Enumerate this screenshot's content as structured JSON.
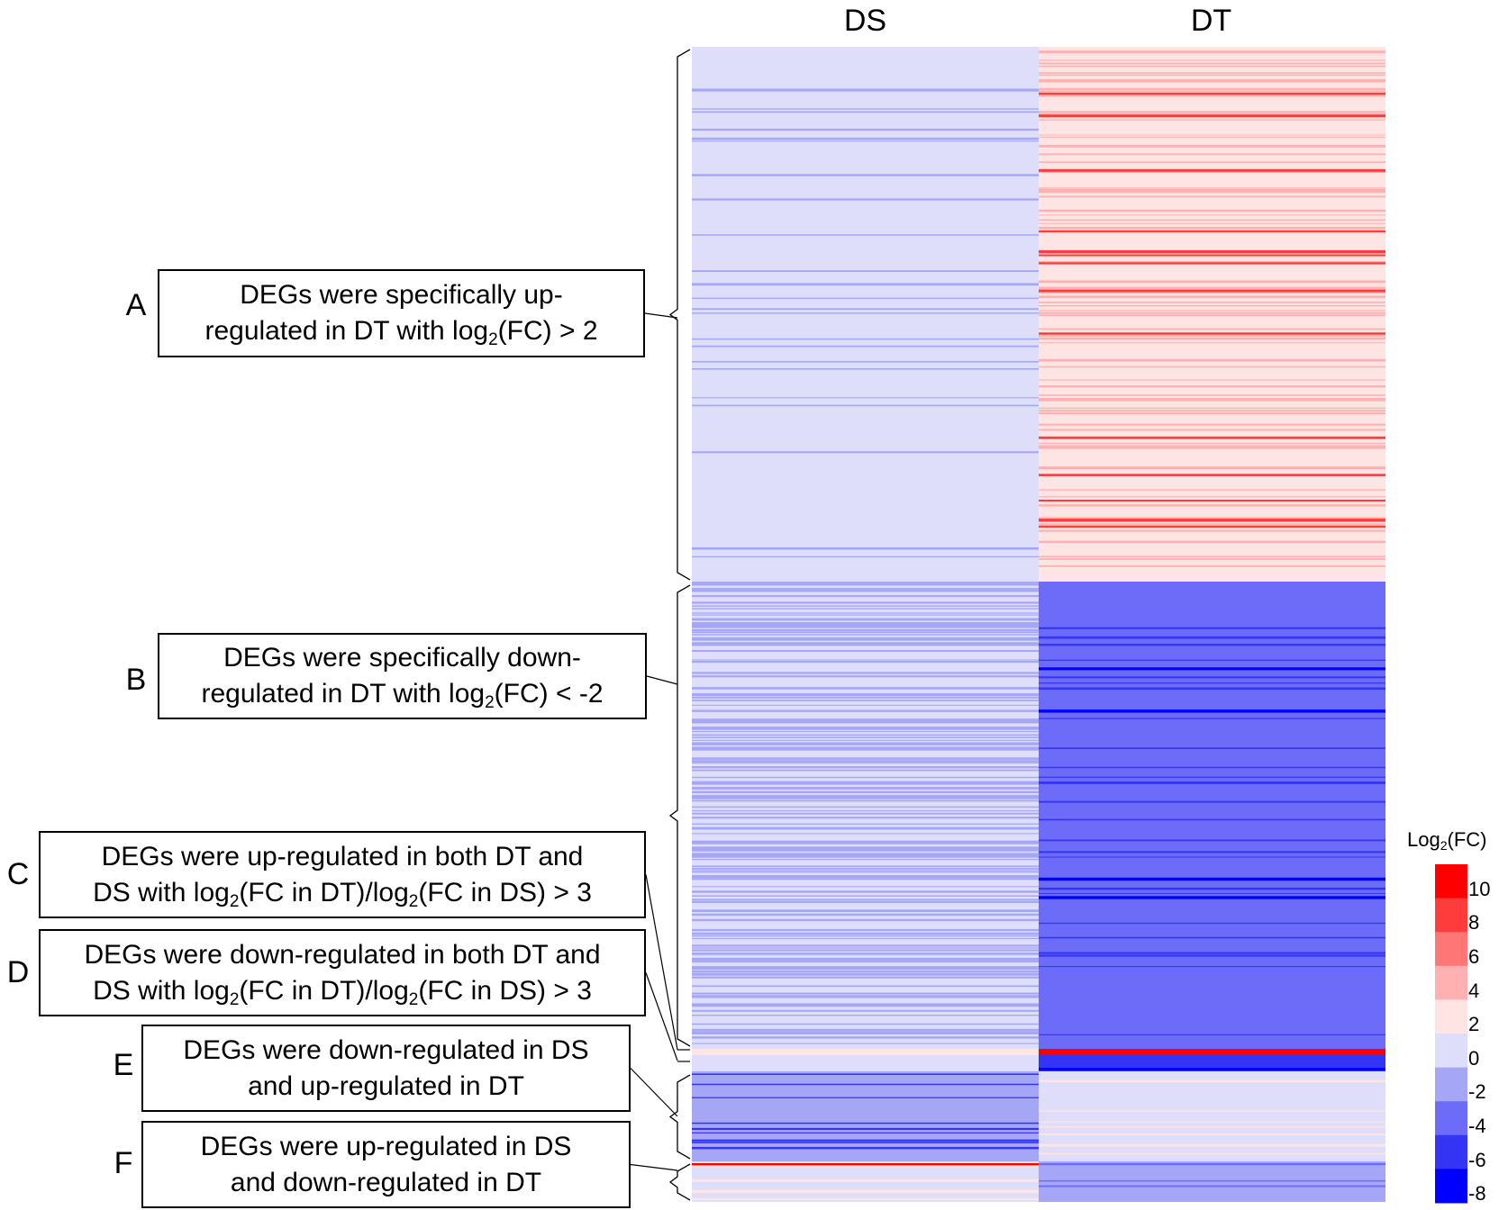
{
  "chart_data": {
    "type": "heatmap",
    "columns": [
      "DS",
      "DT"
    ],
    "colorbar": {
      "title_main": "Log",
      "title_sub": "2",
      "title_tail": "(FC)",
      "range": [
        -9,
        11
      ],
      "ticks": [
        "10",
        "8",
        "6",
        "4",
        "2",
        "0",
        "-2",
        "-4",
        "-6",
        "-8"
      ],
      "bins": [
        {
          "from": 9,
          "to": 11,
          "color": "#ff0000"
        },
        {
          "from": 7,
          "to": 9,
          "color": "#ff3c3c"
        },
        {
          "from": 5,
          "to": 7,
          "color": "#ff7676"
        },
        {
          "from": 3,
          "to": 5,
          "color": "#ffb1b1"
        },
        {
          "from": 1,
          "to": 3,
          "color": "#ffe4e4"
        },
        {
          "from": -1,
          "to": 1,
          "color": "#dedefb"
        },
        {
          "from": -3,
          "to": -1,
          "color": "#a6a6f6"
        },
        {
          "from": -5,
          "to": -3,
          "color": "#6c6cf8"
        },
        {
          "from": -7,
          "to": -5,
          "color": "#3434f5"
        },
        {
          "from": -9,
          "to": -7,
          "color": "#0000ff"
        }
      ]
    },
    "clusters": [
      {
        "id": "A",
        "text_parts": [
          [
            "DEGs were specifically up-"
          ],
          [
            "regulated in DT with log",
            {
              "sub": "2"
            },
            "(FC) > 2"
          ]
        ],
        "ds_base": 0,
        "ds_stripe": -2,
        "ds_stripes": 26,
        "dt_base": 2,
        "dt_stripe": 4,
        "dt_stripes": 90,
        "dt_strong": 8,
        "dt_strong_count": 14
      },
      {
        "id": "B",
        "text_parts": [
          [
            "DEGs were specifically down-"
          ],
          [
            "regulated in DT with log",
            {
              "sub": "2"
            },
            "(FC) < -2"
          ]
        ],
        "ds_base": 0,
        "ds_stripe": -2,
        "ds_stripes": 170,
        "dt_base": -4,
        "dt_stripe": -6,
        "dt_stripes": 28,
        "dt_strong": -8,
        "dt_strong_count": 4
      },
      {
        "id": "C",
        "text_parts": [
          [
            "DEGs were up-regulated in both DT and"
          ],
          [
            "DS with log",
            {
              "sub": "2"
            },
            "(FC in DT)/log",
            {
              "sub": "2"
            },
            "(FC in DS) > 3"
          ]
        ],
        "ds_base": 2,
        "dt_base": 9
      },
      {
        "id": "D",
        "text_parts": [
          [
            "DEGs were down-regulated in both DT and"
          ],
          [
            "DS with log",
            {
              "sub": "2"
            },
            "(FC in DT)/log",
            {
              "sub": "2"
            },
            "(FC in DS) > 3"
          ]
        ],
        "ds_base": -1,
        "dt_base": -6
      },
      {
        "id": "E",
        "text_parts": [
          [
            "DEGs were down-regulated in DS"
          ],
          [
            "and up-regulated in DT"
          ]
        ],
        "ds_base": -3,
        "ds_stripe": -6,
        "ds_stripes": 10,
        "dt_base": 0,
        "dt_stripe": 2,
        "dt_stripes": 8
      },
      {
        "id": "F",
        "text_parts": [
          [
            "DEGs were up-regulated in DS"
          ],
          [
            "and down-regulated in DT"
          ]
        ],
        "ds_base": 0,
        "ds_stripe": 2,
        "ds_stripes": 10,
        "ds_strong": 10,
        "ds_strong_count": 1,
        "dt_base": -2,
        "dt_stripe": -5,
        "dt_stripes": 3
      }
    ]
  }
}
